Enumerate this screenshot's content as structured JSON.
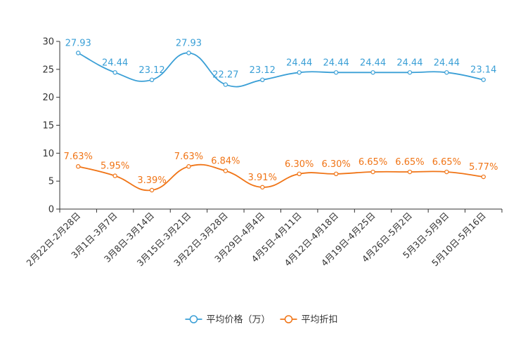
{
  "chart_data": {
    "type": "line",
    "title": "",
    "xlabel": "",
    "ylabel": "",
    "ylim": [
      0,
      30
    ],
    "yticks": [
      0,
      5,
      10,
      15,
      20,
      25,
      30
    ],
    "legend_position": "bottom-center",
    "categories": [
      "2月22日-2月28日",
      "3月1日-3月7日",
      "3月8日-3月14日",
      "3月15日-3月21日",
      "3月22日-3月28日",
      "3月29日-4月4日",
      "4月5日-4月11日",
      "4月12日-4月18日",
      "4月19日-4月25日",
      "4月26日-5月2日",
      "5月3日-5月9日",
      "5月10日-5月16日"
    ],
    "series": [
      {
        "name": "平均价格（万）",
        "color": "#3a9fd6",
        "values": [
          27.93,
          24.44,
          23.12,
          27.93,
          22.27,
          23.12,
          24.44,
          24.44,
          24.44,
          24.44,
          24.44,
          23.14
        ],
        "labels": [
          "27.93",
          "24.44",
          "23.12",
          "27.93",
          "22.27",
          "23.12",
          "24.44",
          "24.44",
          "24.44",
          "24.44",
          "24.44",
          "23.14"
        ]
      },
      {
        "name": "平均折扣",
        "color": "#f07416",
        "values": [
          7.63,
          5.95,
          3.39,
          7.63,
          6.84,
          3.91,
          6.3,
          6.3,
          6.65,
          6.65,
          6.65,
          5.77
        ],
        "labels": [
          "7.63%",
          "5.95%",
          "3.39%",
          "7.63%",
          "6.84%",
          "3.91%",
          "6.30%",
          "6.30%",
          "6.65%",
          "6.65%",
          "6.65%",
          "5.77%"
        ]
      }
    ]
  }
}
